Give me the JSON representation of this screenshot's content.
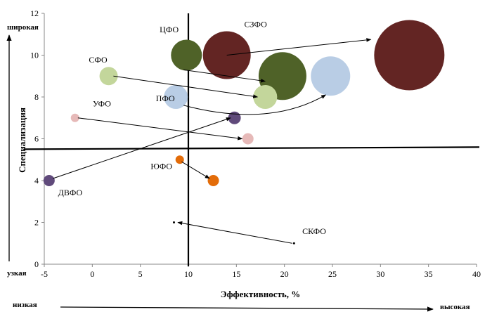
{
  "chart_data": {
    "type": "bubble",
    "title": "",
    "xlabel": "Эффективность, %",
    "ylabel": "Специализация",
    "xlim": [
      -5,
      40
    ],
    "ylim": [
      0,
      12
    ],
    "xticks": [
      -5,
      0,
      5,
      10,
      15,
      20,
      25,
      30,
      35,
      40
    ],
    "yticks": [
      0,
      2,
      4,
      6,
      8,
      10,
      12
    ],
    "grid": false,
    "quadrant_lines": {
      "x": 10,
      "y": 5.55
    },
    "points": [
      {
        "x": 9.8,
        "y": 10.0,
        "size": 22,
        "color": "#4f6228"
      },
      {
        "x": 19.8,
        "y": 9.0,
        "size": 34,
        "color": "#4f6228"
      },
      {
        "x": 14.0,
        "y": 10.0,
        "size": 34,
        "color": "#632523"
      },
      {
        "x": 33.0,
        "y": 10.0,
        "size": 50,
        "color": "#632523"
      },
      {
        "x": 1.7,
        "y": 9.0,
        "size": 13,
        "color": "#c3d69b"
      },
      {
        "x": 18.0,
        "y": 8.0,
        "size": 17,
        "color": "#c3d69b"
      },
      {
        "x": 8.7,
        "y": 8.0,
        "size": 17,
        "color": "#b9cde5"
      },
      {
        "x": 24.8,
        "y": 9.0,
        "size": 28,
        "color": "#b9cde5"
      },
      {
        "x": -1.8,
        "y": 7.0,
        "size": 6,
        "color": "#e6b9b8"
      },
      {
        "x": 16.2,
        "y": 6.0,
        "size": 8,
        "color": "#e6b9b8"
      },
      {
        "x": -4.5,
        "y": 4.0,
        "size": 8,
        "color": "#604a7b"
      },
      {
        "x": 14.8,
        "y": 7.0,
        "size": 9,
        "color": "#604a7b"
      },
      {
        "x": 9.1,
        "y": 5.0,
        "size": 6,
        "color": "#e36c09"
      },
      {
        "x": 12.6,
        "y": 4.0,
        "size": 8,
        "color": "#e36c09"
      },
      {
        "x": 8.5,
        "y": 2.0,
        "size": 1.5,
        "color": "#000000"
      },
      {
        "x": 21.0,
        "y": 1.0,
        "size": 1.5,
        "color": "#000000"
      }
    ],
    "arrows": [
      {
        "from": [
          14.0,
          10.0
        ],
        "to": [
          29.0,
          10.75
        ],
        "curve": 0
      },
      {
        "from": [
          9.5,
          9.3
        ],
        "to": [
          18.0,
          8.75
        ],
        "curve": 0
      },
      {
        "from": [
          2.2,
          9.0
        ],
        "to": [
          17.2,
          8.0
        ],
        "curve": 0
      },
      {
        "from": [
          9.5,
          7.6
        ],
        "to": [
          24.3,
          8.1
        ],
        "curve": 1
      },
      {
        "from": [
          -1.5,
          7.0
        ],
        "to": [
          15.6,
          6.0
        ],
        "curve": 0
      },
      {
        "from": [
          -4.1,
          4.1
        ],
        "to": [
          14.4,
          7.0
        ],
        "curve": 0
      },
      {
        "from": [
          9.3,
          4.9
        ],
        "to": [
          12.2,
          4.1
        ],
        "curve": 0
      },
      {
        "from": [
          20.8,
          1.0
        ],
        "to": [
          8.9,
          2.0
        ],
        "curve": 0
      }
    ],
    "annotations": [
      {
        "text": "ЦФО",
        "x": 8.0,
        "y": 11.1
      },
      {
        "text": "СЗФО",
        "x": 17.0,
        "y": 11.35
      },
      {
        "text": "СФО",
        "x": 0.6,
        "y": 9.65
      },
      {
        "text": "УФО",
        "x": 1.0,
        "y": 7.55
      },
      {
        "text": "ПФО",
        "x": 7.6,
        "y": 7.8
      },
      {
        "text": "ЮФО",
        "x": 7.2,
        "y": 4.55
      },
      {
        "text": "ДВФО",
        "x": -2.3,
        "y": 3.3
      },
      {
        "text": "СКФО",
        "x": 23.1,
        "y": 1.45
      }
    ],
    "side_labels": {
      "y_high": "широкая",
      "y_low": "узкая",
      "x_low": "низкая",
      "x_high": "высокая"
    }
  }
}
